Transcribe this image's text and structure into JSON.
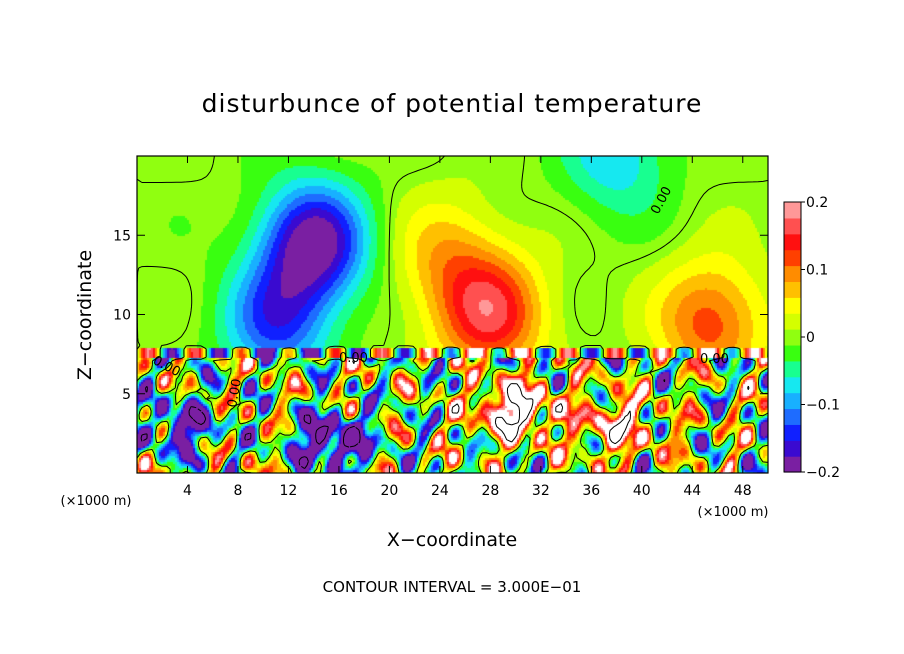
{
  "chart_data": {
    "type": "heatmap",
    "title": "disturbunce of potential temperature",
    "xlabel": "X−coordinate",
    "ylabel": "Z−coordinate",
    "x_unit_left": "(×1000 m)",
    "x_unit_right": "(×1000 m)",
    "xlim": [
      0,
      50
    ],
    "ylim": [
      0,
      20
    ],
    "x_ticks": [
      4,
      8,
      12,
      16,
      20,
      24,
      28,
      32,
      36,
      40,
      44,
      48
    ],
    "x_tick_labels": [
      "4",
      "8",
      "12",
      "16",
      "20",
      "24",
      "28",
      "32",
      "36",
      "40",
      "44",
      "48"
    ],
    "y_ticks": [
      5,
      10,
      15
    ],
    "y_tick_labels": [
      "5",
      "10",
      "15"
    ],
    "colorbar": {
      "range": [
        -0.2,
        0.2
      ],
      "ticks": [
        0.2,
        0.1,
        0,
        -0.1,
        -0.2
      ],
      "tick_labels": [
        "0.2",
        "0.1",
        "0",
        "−0.1",
        "−0.2"
      ],
      "colors": [
        "#7a1fa2",
        "#3a0ad0",
        "#1020ff",
        "#1e6cff",
        "#18b0ff",
        "#16e8f0",
        "#18ff90",
        "#39ff10",
        "#90ff10",
        "#d4ff00",
        "#ffff00",
        "#ffc000",
        "#ff8c00",
        "#ff4000",
        "#ff1010",
        "#ff5050",
        "#ff9898"
      ]
    },
    "contour_labels": [
      "0.00",
      "0.00",
      "0.00",
      "0.00",
      "0.00"
    ],
    "footer": "CONTOUR INTERVAL = 3.000E−01",
    "field_features": [
      {
        "kind": "min",
        "x": 14,
        "z": 14.5,
        "value": -0.2
      },
      {
        "kind": "min",
        "x": 11,
        "z": 9.5,
        "value": -0.13
      },
      {
        "kind": "min",
        "x": 38,
        "z": 20,
        "value": -0.08
      },
      {
        "kind": "max",
        "x": 28,
        "z": 10,
        "value": 0.15
      },
      {
        "kind": "max",
        "x": 45.5,
        "z": 9.5,
        "value": 0.12
      },
      {
        "kind": "max",
        "x": 24.5,
        "z": 13.5,
        "value": 0.07
      },
      {
        "kind": "max",
        "x": 30,
        "z": 4,
        "value": 0.3
      },
      {
        "kind": "max",
        "x": 38,
        "z": 3,
        "value": 0.2
      },
      {
        "kind": "min",
        "x": 3.5,
        "z": 3,
        "value": -0.2
      },
      {
        "kind": "min",
        "x": 15.5,
        "z": 2,
        "value": -0.3
      }
    ]
  }
}
